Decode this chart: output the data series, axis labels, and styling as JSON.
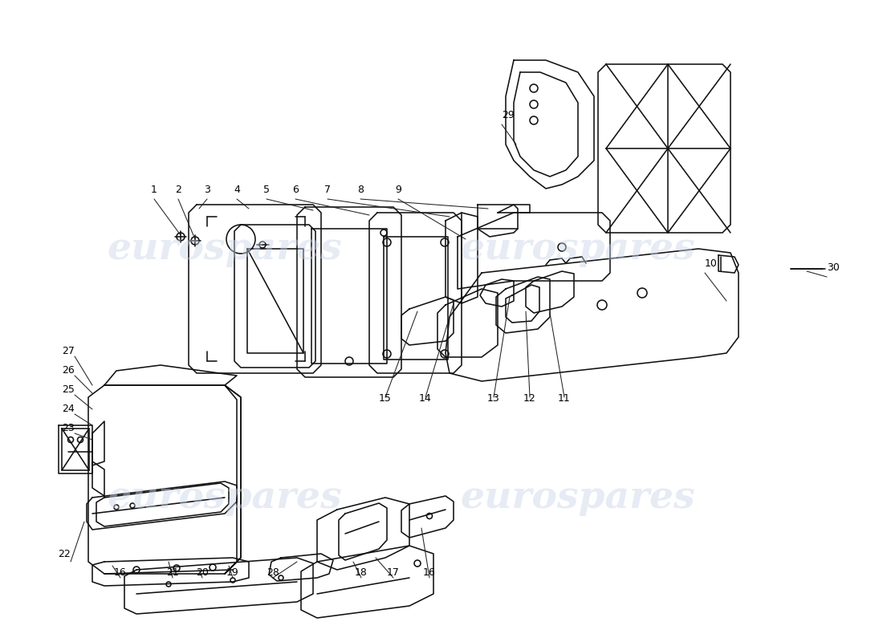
{
  "background_color": "#ffffff",
  "line_color": "#111111",
  "label_color": "#000000",
  "watermark_color": "#c8d4e8",
  "watermark_alpha": 0.45,
  "watermark_text": "eurospares",
  "label_fontsize": 9,
  "leader_color": "#222222",
  "leader_lw": 0.75,
  "part_lw": 1.15,
  "fig_width": 11.0,
  "fig_height": 8.0,
  "dpi": 100
}
